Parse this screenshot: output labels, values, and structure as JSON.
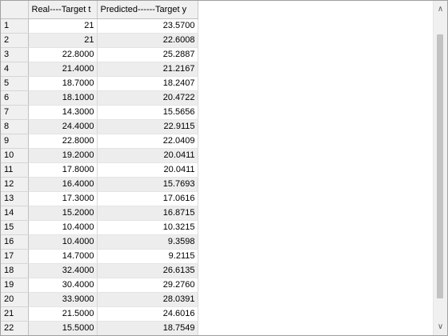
{
  "columns": {
    "real": "Real----Target t",
    "predicted": "Predicted------Target y"
  },
  "rows": [
    {
      "index": "1",
      "real": "21",
      "predicted": "23.5700"
    },
    {
      "index": "2",
      "real": "21",
      "predicted": "22.6008"
    },
    {
      "index": "3",
      "real": "22.8000",
      "predicted": "25.2887"
    },
    {
      "index": "4",
      "real": "21.4000",
      "predicted": "21.2167"
    },
    {
      "index": "5",
      "real": "18.7000",
      "predicted": "18.2407"
    },
    {
      "index": "6",
      "real": "18.1000",
      "predicted": "20.4722"
    },
    {
      "index": "7",
      "real": "14.3000",
      "predicted": "15.5656"
    },
    {
      "index": "8",
      "real": "24.4000",
      "predicted": "22.9115"
    },
    {
      "index": "9",
      "real": "22.8000",
      "predicted": "22.0409"
    },
    {
      "index": "10",
      "real": "19.2000",
      "predicted": "20.0411"
    },
    {
      "index": "11",
      "real": "17.8000",
      "predicted": "20.0411"
    },
    {
      "index": "12",
      "real": "16.4000",
      "predicted": "15.7693"
    },
    {
      "index": "13",
      "real": "17.3000",
      "predicted": "17.0616"
    },
    {
      "index": "14",
      "real": "15.2000",
      "predicted": "16.8715"
    },
    {
      "index": "15",
      "real": "10.4000",
      "predicted": "10.3215"
    },
    {
      "index": "16",
      "real": "10.4000",
      "predicted": "9.3598"
    },
    {
      "index": "17",
      "real": "14.7000",
      "predicted": "9.2115"
    },
    {
      "index": "18",
      "real": "32.4000",
      "predicted": "26.6135"
    },
    {
      "index": "19",
      "real": "30.4000",
      "predicted": "29.2760"
    },
    {
      "index": "20",
      "real": "33.9000",
      "predicted": "28.0391"
    },
    {
      "index": "21",
      "real": "21.5000",
      "predicted": "24.6016"
    },
    {
      "index": "22",
      "real": "15.5000",
      "predicted": "18.7549"
    }
  ],
  "scrollbar": {
    "up_icon": "chevron-up-icon",
    "down_icon": "chevron-down-icon"
  }
}
